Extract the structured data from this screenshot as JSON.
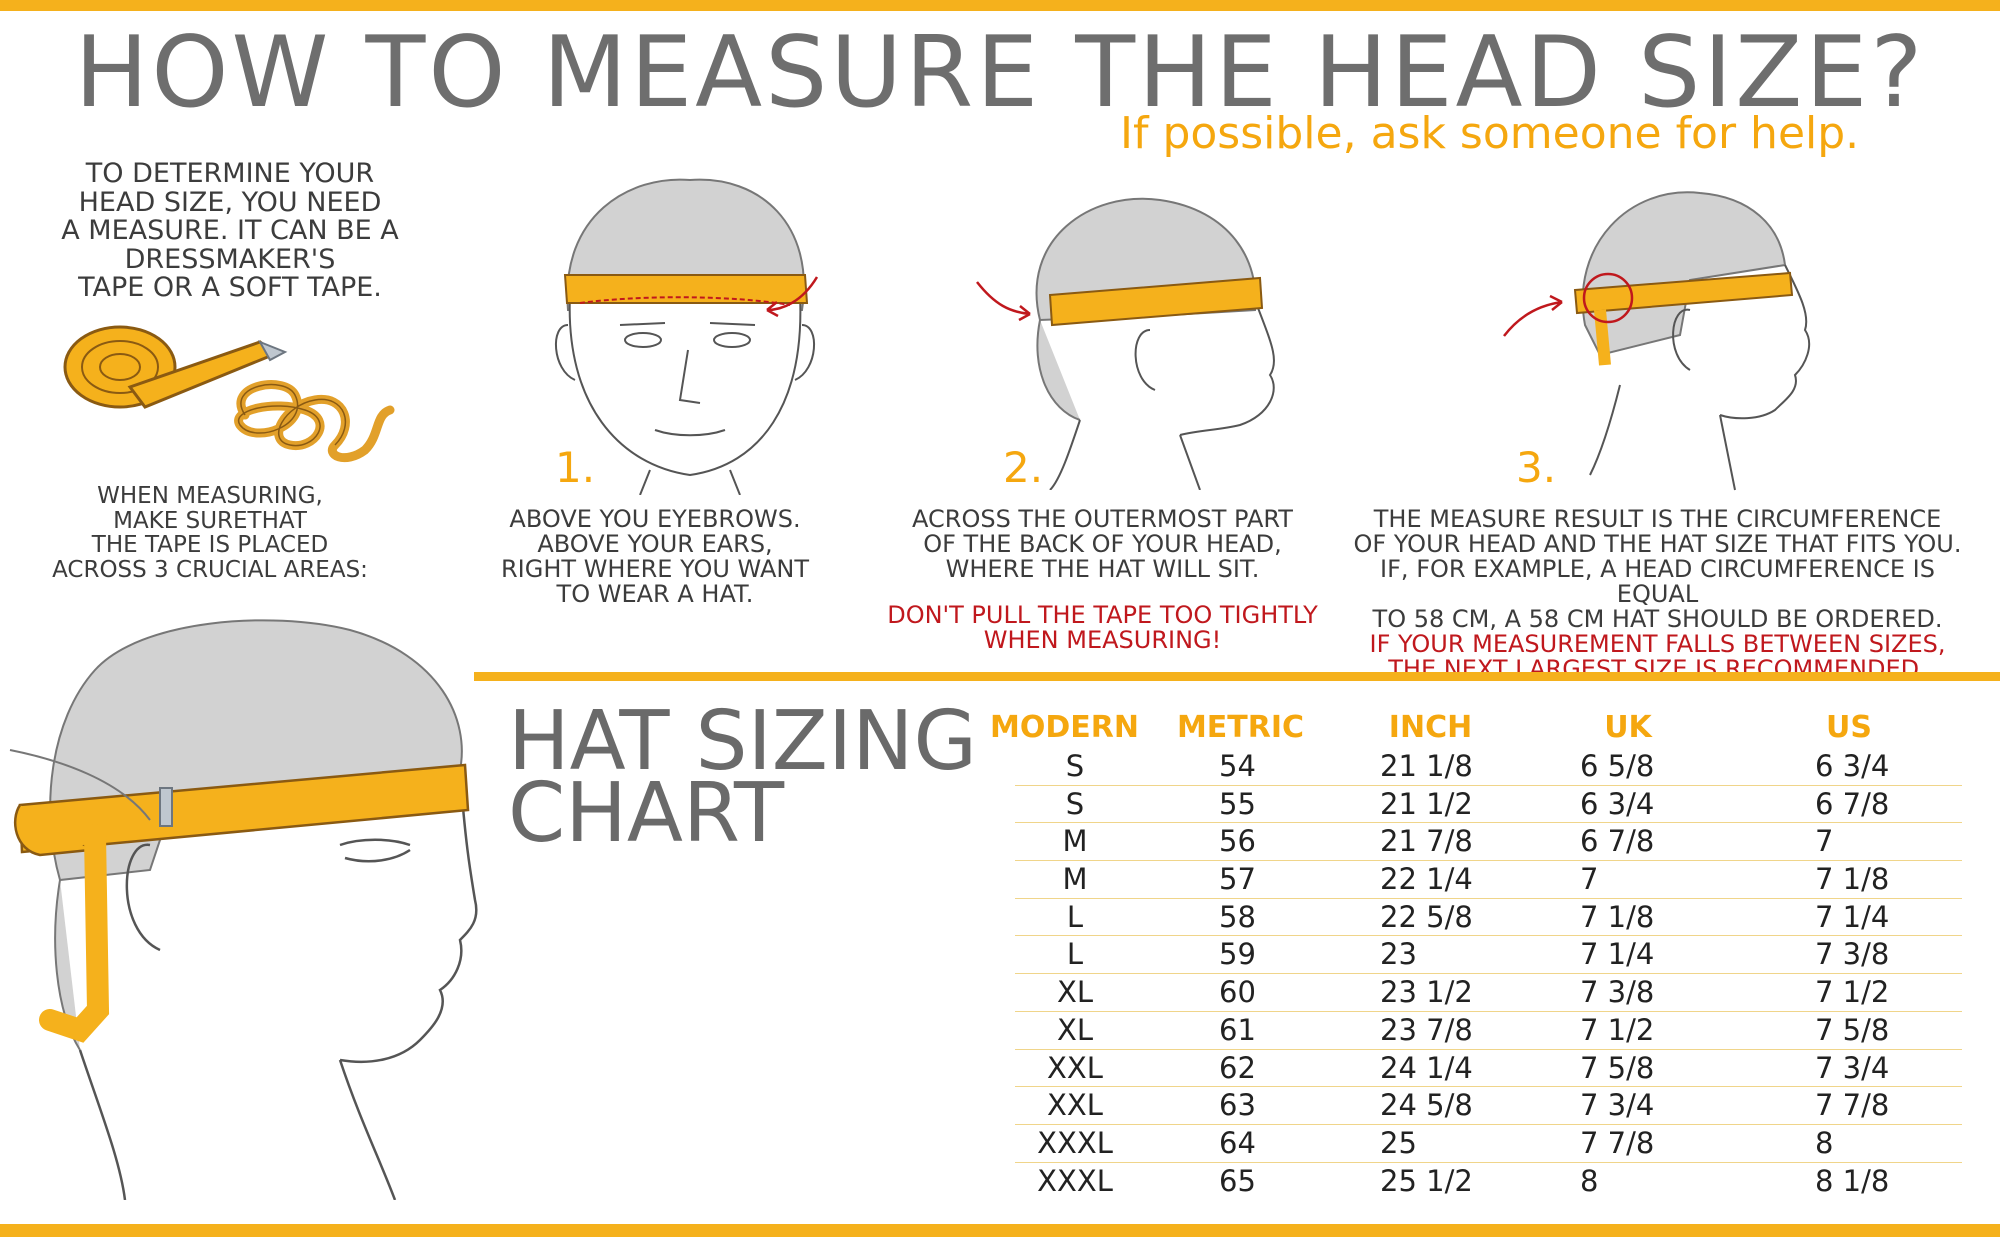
{
  "header": {
    "title": "HOW TO MEASURE THE HEAD SIZE?",
    "subtitle": "If possible, ask someone for help."
  },
  "intro": {
    "lines": [
      "TO DETERMINE YOUR",
      "HEAD SIZE, YOU NEED",
      "A MEASURE. IT CAN BE A",
      "DRESSMAKER'S",
      "TAPE OR A SOFT TAPE."
    ],
    "areas_lines": [
      "WHEN MEASURING,",
      "MAKE SURETHAT",
      "THE TAPE IS PLACED",
      "ACROSS 3 CRUCIAL AREAS:"
    ]
  },
  "steps": [
    {
      "number": "1.",
      "lines": [
        "ABOVE YOU EYEBROWS.",
        "ABOVE YOUR EARS,",
        "RIGHT WHERE YOU WANT",
        "TO WEAR A HAT."
      ],
      "warning_lines": []
    },
    {
      "number": "2.",
      "lines": [
        "ACROSS THE OUTERMOST PART",
        "OF THE BACK OF YOUR HEAD,",
        "WHERE THE HAT WILL SIT."
      ],
      "warning_lines": [
        "DON'T PULL THE TAPE TOO TIGHTLY",
        "WHEN MEASURING!"
      ]
    },
    {
      "number": "3.",
      "lines": [
        "THE MEASURE RESULT IS THE CIRCUMFERENCE",
        "OF YOUR HEAD AND THE  HAT SIZE THAT FITS YOU.",
        "IF, FOR EXAMPLE, A HEAD CIRCUMFERENCE IS EQUAL",
        "TO 58 CM, A 58 CM HAT SHOULD BE ORDERED."
      ],
      "warning_lines": [
        "IF YOUR MEASUREMENT FALLS BETWEEN SIZES,",
        "THE NEXT LARGEST SIZE IS RECOMMENDED."
      ]
    }
  ],
  "chart": {
    "title_lines": [
      "HAT SIZING",
      "CHART"
    ],
    "columns": [
      "MODERN",
      "METRIC",
      "INCH",
      "UK",
      "US"
    ],
    "rows": [
      [
        "S",
        "54",
        "21 1/8",
        "6 5/8",
        "6 3/4"
      ],
      [
        "S",
        "55",
        "21 1/2",
        "6 3/4",
        "6 7/8"
      ],
      [
        "M",
        "56",
        "21 7/8",
        "6 7/8",
        "7"
      ],
      [
        "M",
        "57",
        "22 1/4",
        "7",
        "7 1/8"
      ],
      [
        "L",
        "58",
        "22 5/8",
        "7 1/8",
        "7 1/4"
      ],
      [
        "L",
        "59",
        "23",
        "7 1/4",
        "7 3/8"
      ],
      [
        "XL",
        "60",
        "23 1/2",
        "7 3/8",
        "7 1/2"
      ],
      [
        "XL",
        "61",
        "23 7/8",
        "7 1/2",
        "7 5/8"
      ],
      [
        "XXL",
        "62",
        "24 1/4",
        "7 5/8",
        "7 3/4"
      ],
      [
        "XXL",
        "63",
        "24 5/8",
        "7 3/4",
        "7 7/8"
      ],
      [
        "XXXL",
        "64",
        "25",
        "7 7/8",
        "8"
      ],
      [
        "XXXL",
        "65",
        "25 1/2",
        "8",
        "8 1/8"
      ]
    ]
  },
  "colors": {
    "accent": "#f5b11c",
    "text": "#3c3c3c",
    "title": "#6e6e6e",
    "warning": "#c0181d",
    "row_line": "#f0d58a"
  },
  "icons": [
    "tape-roll-icon",
    "tape-coil-icon",
    "head-front-icon",
    "head-back-icon",
    "head-side-icon",
    "head-large-icon",
    "arrow-icon"
  ]
}
